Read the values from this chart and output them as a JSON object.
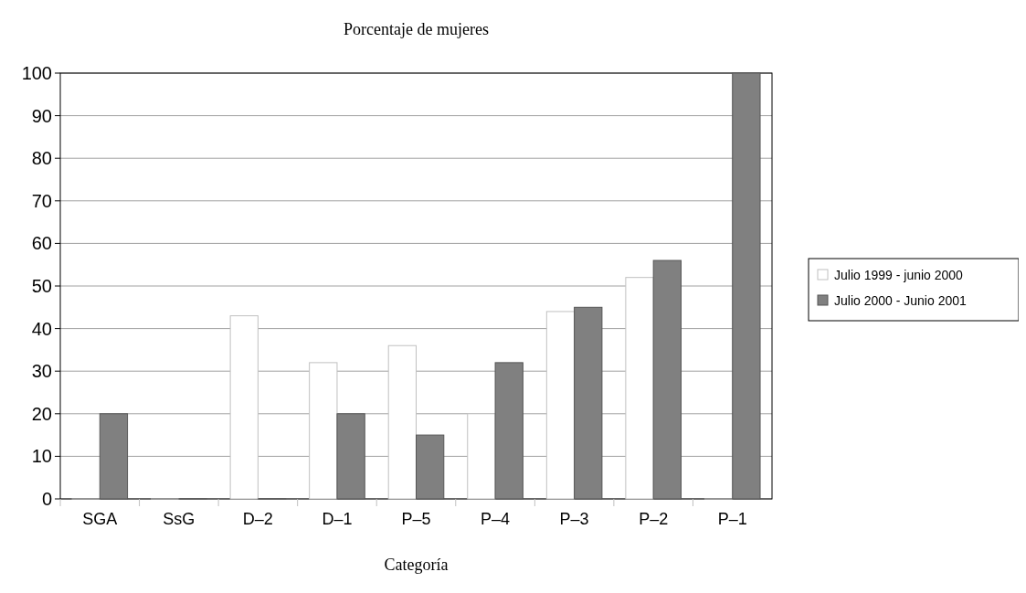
{
  "chart_data": {
    "type": "bar",
    "title": "Porcentaje de mujeres",
    "xlabel": "Categoría",
    "categories": [
      "SGA",
      "SsG",
      "D–2",
      "D–1",
      "P–5",
      "P–4",
      "P–3",
      "P–2",
      "P–1"
    ],
    "series": [
      {
        "name": "Julio 1999 - junio 2000",
        "color": "#ffffff",
        "values": [
          0,
          0,
          43,
          32,
          36,
          20,
          44,
          52,
          0
        ]
      },
      {
        "name": "Julio 2000 - Junio 2001",
        "color": "#808080",
        "values": [
          20,
          0,
          0,
          20,
          15,
          32,
          45,
          56,
          100
        ]
      }
    ],
    "ylim": [
      0,
      100
    ],
    "yticks": [
      0,
      10,
      20,
      30,
      40,
      50,
      60,
      70,
      80,
      90,
      100
    ],
    "grid": "y",
    "legend": "right"
  }
}
